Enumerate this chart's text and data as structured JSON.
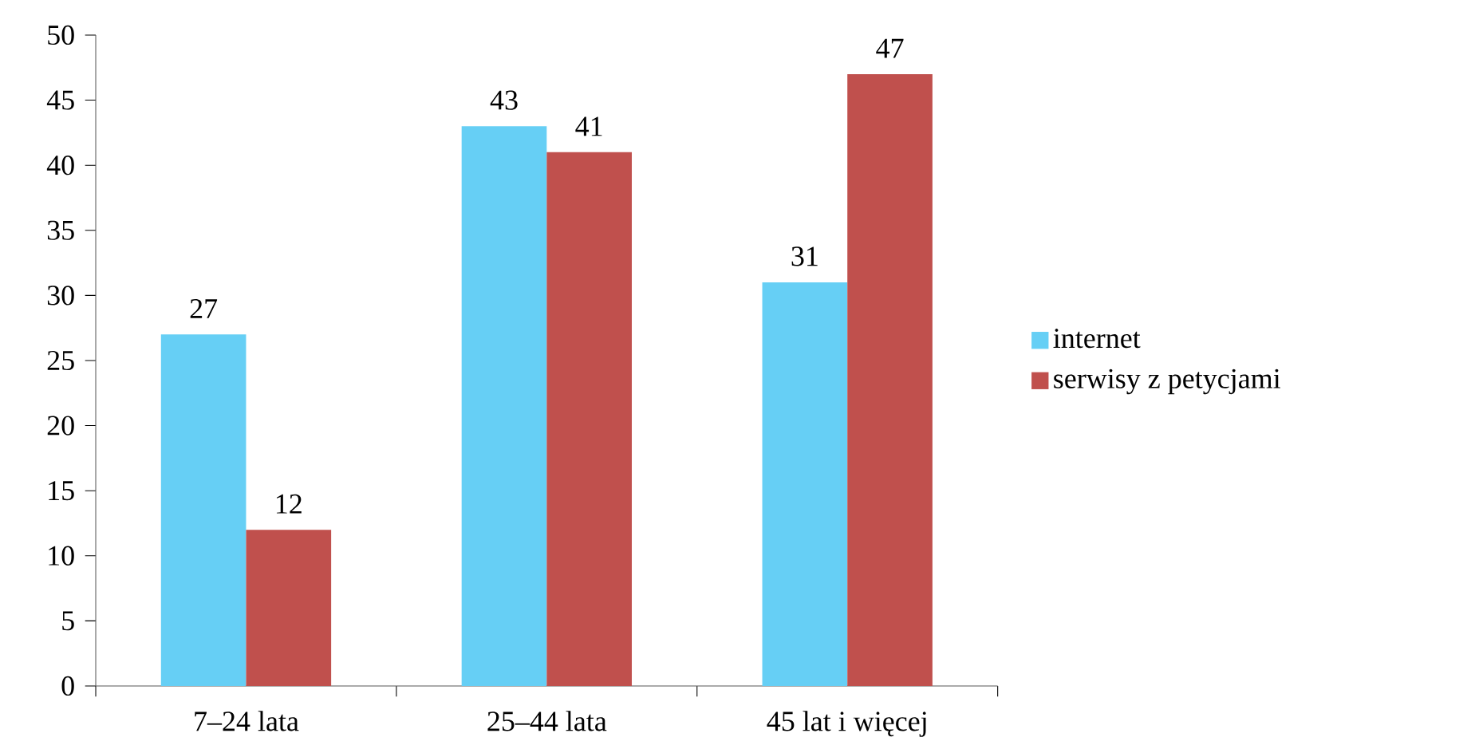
{
  "chart_data": {
    "type": "bar",
    "categories": [
      "7–24 lata",
      "25–44 lata",
      "45 lat i więcej"
    ],
    "series": [
      {
        "name": "internet",
        "color": "#66cff5",
        "values": [
          27,
          43,
          31
        ]
      },
      {
        "name": "serwisy z petycjami",
        "color": "#c0504d",
        "values": [
          12,
          41,
          47
        ]
      }
    ],
    "ylim": [
      0,
      50
    ],
    "yticks": [
      0,
      5,
      10,
      15,
      20,
      25,
      30,
      35,
      40,
      45,
      50
    ],
    "data_labels": true,
    "grid": false,
    "legend": "right"
  }
}
